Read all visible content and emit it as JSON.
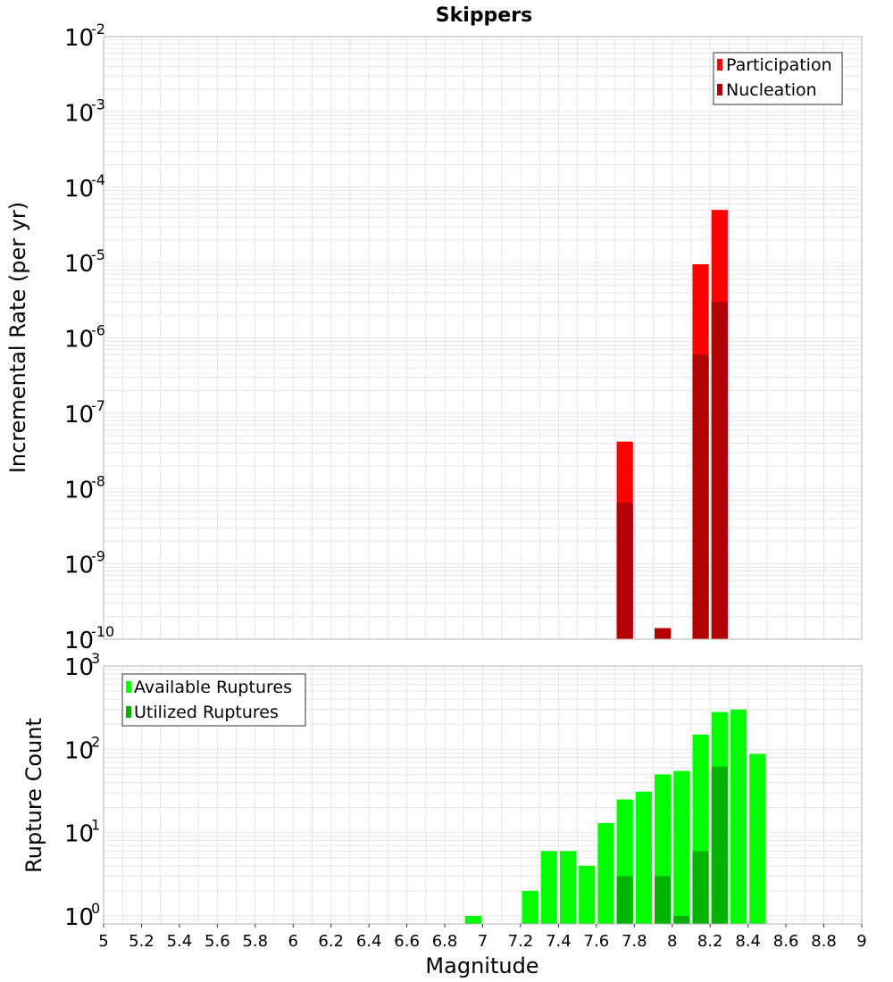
{
  "title": "Skippers",
  "colors": {
    "participation": "#ff0000",
    "nucleation": "#b30000",
    "available": "#00ff00",
    "utilized": "#00b300",
    "grid": "#e6e6e6",
    "frame": "#b3b3b3"
  },
  "chart_data": [
    {
      "type": "bar",
      "ylabel": "Incremental Rate (per yr)",
      "yscale": "log",
      "ylim": [
        1e-10,
        0.01
      ],
      "xlim": [
        5,
        9
      ],
      "legend_position": "top-right",
      "series": [
        {
          "name": "Participation",
          "x": [
            7.75,
            7.95,
            8.15,
            8.25
          ],
          "values": [
            4.2e-08,
            1.4e-10,
            9.5e-06,
            5e-05
          ]
        },
        {
          "name": "Nucleation",
          "x": [
            7.75,
            7.95,
            8.15,
            8.25
          ],
          "values": [
            6.5e-09,
            1.4e-10,
            6e-07,
            3e-06
          ]
        }
      ],
      "yticks": [
        {
          "base": "10",
          "exp": "-2"
        },
        {
          "base": "10",
          "exp": "-3"
        },
        {
          "base": "10",
          "exp": "-4"
        },
        {
          "base": "10",
          "exp": "-5"
        },
        {
          "base": "10",
          "exp": "-6"
        },
        {
          "base": "10",
          "exp": "-7"
        },
        {
          "base": "10",
          "exp": "-8"
        },
        {
          "base": "10",
          "exp": "-9"
        },
        {
          "base": "10",
          "exp": "-10"
        }
      ]
    },
    {
      "type": "bar",
      "ylabel": "Rupture Count",
      "xlabel": "Magnitude",
      "yscale": "log",
      "ylim": [
        0.8,
        1000
      ],
      "xlim": [
        5,
        9
      ],
      "legend_position": "top-left",
      "series": [
        {
          "name": "Available Ruptures",
          "x": [
            6.95,
            7.25,
            7.35,
            7.45,
            7.55,
            7.65,
            7.75,
            7.85,
            7.95,
            8.05,
            8.15,
            8.25,
            8.35,
            8.45
          ],
          "values": [
            1,
            2,
            6,
            6,
            4,
            13,
            25,
            31,
            50,
            55,
            150,
            280,
            300,
            88
          ]
        },
        {
          "name": "Utilized Ruptures",
          "x": [
            7.75,
            7.95,
            8.05,
            8.15,
            8.25
          ],
          "values": [
            3,
            3,
            1,
            6,
            62
          ]
        }
      ],
      "yticks": [
        {
          "base": "10",
          "exp": "3"
        },
        {
          "base": "10",
          "exp": "2"
        },
        {
          "base": "10",
          "exp": "1"
        },
        {
          "base": "10",
          "exp": "0"
        }
      ],
      "xticks": [
        "5",
        "5.2",
        "5.4",
        "5.6",
        "5.8",
        "6",
        "6.2",
        "6.4",
        "6.6",
        "6.8",
        "7",
        "7.2",
        "7.4",
        "7.6",
        "7.8",
        "8",
        "8.2",
        "8.4",
        "8.6",
        "8.8",
        "9"
      ]
    }
  ]
}
